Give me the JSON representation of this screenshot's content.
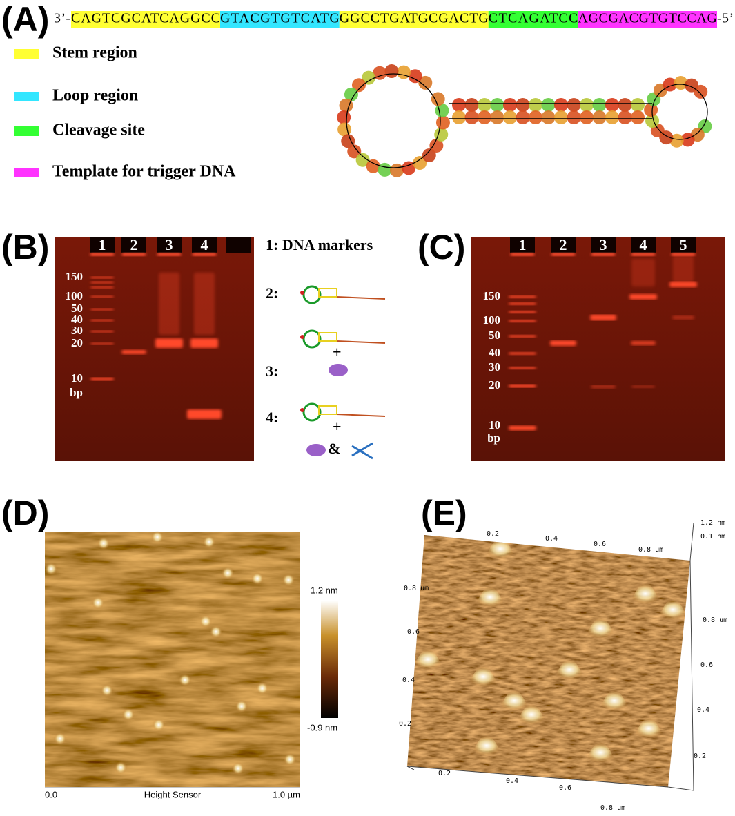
{
  "panel_labels": [
    "(A)",
    "(B)",
    "(C)",
    "(D)",
    "(E)"
  ],
  "sequence": {
    "start": "3’-",
    "segments": [
      {
        "text": "CAGTCGCATCAGGCC",
        "color": "#ffff33"
      },
      {
        "text": "GTACGTGTCATG",
        "color": "#33e6ff"
      },
      {
        "text": "GGCCTGATGCGACTG",
        "color": "#ffff33"
      },
      {
        "text": "CTCAGATCC",
        "color": "#33ff33"
      },
      {
        "text": "AGCGACGTGTCCAG",
        "color": "#ff33ff"
      }
    ],
    "end": "-5’"
  },
  "legend": [
    {
      "label": "Stem region",
      "color": "#ffff33"
    },
    {
      "label": "Loop region",
      "color": "#33e6ff"
    },
    {
      "label": "Cleavage site",
      "color": "#33ff33"
    },
    {
      "label": "Template for trigger DNA",
      "color": "#ff33ff"
    }
  ],
  "gel_b": {
    "lanes": [
      "1",
      "2",
      "3",
      "4"
    ],
    "markers": [
      "150",
      "100",
      "50",
      "40",
      "30",
      "20",
      "10",
      "bp"
    ],
    "key": {
      "lane1": "1: DNA markers",
      "lane2": "2:",
      "lane3": "3:",
      "lane4": "4:",
      "plus": "+",
      "and": "&"
    }
  },
  "gel_c": {
    "lanes": [
      "1",
      "2",
      "3",
      "4",
      "5"
    ],
    "markers": [
      "150",
      "100",
      "50",
      "40",
      "30",
      "20",
      "10",
      "bp"
    ]
  },
  "afm_2d": {
    "scale_max": "1.2 nm",
    "scale_min": "-0.9 nm",
    "x_start": "0.0",
    "x_title": "Height Sensor",
    "x_end": "1.0 µm"
  },
  "afm_3d": {
    "z_max": "1.2 nm",
    "z_min": "0.1 nm",
    "top": [
      "0.2",
      "0.4",
      "0.6",
      "0.8 um"
    ],
    "left": [
      "0.8 um",
      "0.6",
      "0.4",
      "0.2"
    ],
    "right": [
      "0.8 um",
      "0.6",
      "0.4",
      "0.2"
    ],
    "bottom": [
      "0.2",
      "0.4",
      "0.6",
      "0.8 um"
    ]
  }
}
